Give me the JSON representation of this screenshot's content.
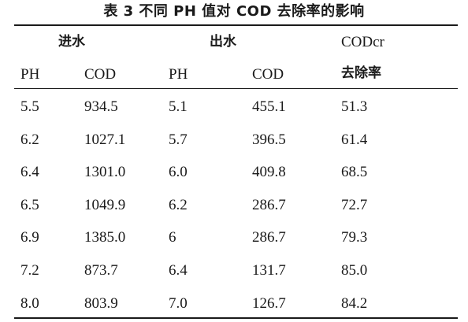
{
  "caption": "表 3  不同 PH 值对 COD 去除率的影响",
  "header": {
    "group_in": "进水",
    "group_out": "出水",
    "removal_top": "CODcr",
    "removal_bottom": "去除率",
    "ph_in": "PH",
    "cod_in": "COD",
    "ph_out": "PH",
    "cod_out": "COD"
  },
  "rows": [
    [
      "5.5",
      "934.5",
      "5.1",
      "455.1",
      "51.3"
    ],
    [
      "6.2",
      "1027.1",
      "5.7",
      "396.5",
      "61.4"
    ],
    [
      "6.4",
      "1301.0",
      "6.0",
      "409.8",
      "68.5"
    ],
    [
      "6.5",
      "1049.9",
      "6.2",
      "286.7",
      "72.7"
    ],
    [
      "6.9",
      "1385.0",
      "6",
      "286.7",
      "79.3"
    ],
    [
      "7.2",
      "873.7",
      "6.4",
      "131.7",
      "85.0"
    ],
    [
      "8.0",
      "803.9",
      "7.0",
      "126.7",
      "84.2"
    ]
  ]
}
